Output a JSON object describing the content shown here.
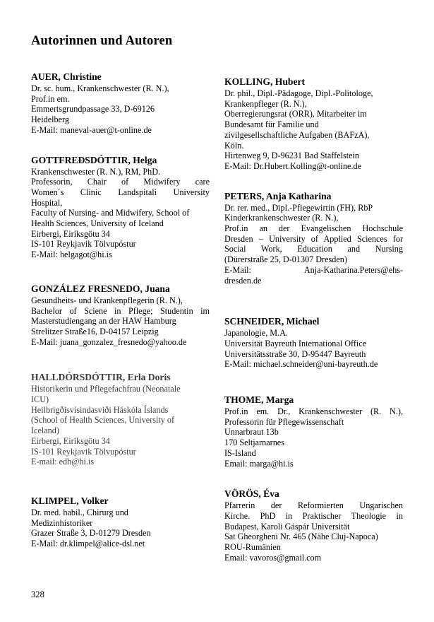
{
  "page": {
    "title": "Autorinnen und Autoren",
    "page_number": "328"
  },
  "authors": {
    "left": [
      {
        "name": "AUER, Christine",
        "lines": [
          {
            "text": "Dr. sc. hum., Krankenschwester (R. N.),"
          },
          {
            "text": "Prof.in em."
          },
          {
            "text": "Emmertsgrundpassage 33, D-69126"
          },
          {
            "text": "Heidelberg"
          },
          {
            "text": "E-Mail: maneval-auer@t-online.de"
          }
        ]
      },
      {
        "name": "GOTTFREÐSDÓTTIR, Helga",
        "lines": [
          {
            "text": "Krankenschwester (R. N.), RM, PhD."
          },
          {
            "text": "Professorin, Chair of Midwifery care",
            "justify": true
          },
          {
            "text": "Women´s Clinic Landspitali University",
            "justify": true
          },
          {
            "text": "Hospital,"
          },
          {
            "text": "Faculty of Nursing- and Midwifery, School of"
          },
          {
            "text": "Health Sciences, University of Iceland"
          },
          {
            "text": "Eirbergi, Eiríksgötu 34"
          },
          {
            "text": "IS-101 Reykjavik Tölvupóstur"
          },
          {
            "text": "E-Mail: helgagot@hi.is"
          }
        ]
      },
      {
        "name": "GONZÁLEZ FRESNEDO, Juana",
        "lines": [
          {
            "text": "Gesundheits- und Krankenpflegerin (R. N.),"
          },
          {
            "text": "Bachelor of Sciene in Pflege; Studentin im",
            "justify": true
          },
          {
            "text": "Masterstudiengang an der HAW Hamburg"
          },
          {
            "text": "Strelitzer Straße16, D-04157 Leipzig"
          },
          {
            "text": "E-Mail: juana_gonzalez_fresnedo@yahoo.de"
          }
        ]
      },
      {
        "name": "HALLDÓRSDÓTTIR, Erla Doris",
        "muted": true,
        "lines": [
          {
            "text": "Historikerin und Pflegefachfrau (Neonatale"
          },
          {
            "text": "ICU)"
          },
          {
            "text": "Heilbrigðisvísindasviði Háskóla Íslands"
          },
          {
            "text": "(School of Health Sciences, University of"
          },
          {
            "text": "Iceland)"
          },
          {
            "text": "Eirbergi, Eiríksgötu 34"
          },
          {
            "text": "IS-101 Reykjavik Tölvupóstur"
          },
          {
            "text": "E-mail: edh@hi.is"
          }
        ]
      },
      {
        "name": "KLIMPEL, Volker",
        "lines": [
          {
            "text": "Dr. med. habil., Chirurg und"
          },
          {
            "text": "Medizinhistoriker"
          },
          {
            "text": "Grazer Straße 3, D-01279 Dresden"
          },
          {
            "text": "E-Mail: dr.klimpel@alice-dsl.net"
          }
        ]
      }
    ],
    "right": [
      {
        "name": "KOLLING, Hubert",
        "lines": [
          {
            "text": "Dr. phil., Dipl.-Pädagoge, Dipl.-Politologe,"
          },
          {
            "text": "Krankenpfleger (R. N.),"
          },
          {
            "text": "Oberregierungsrat (ORR), Mitarbeiter im"
          },
          {
            "text": "Bundesamt für Familie und"
          },
          {
            "text": "zivilgesellschaftliche Aufgaben (BAFzA),"
          },
          {
            "text": "Köln."
          },
          {
            "text": "Hirtenweg 9, D-96231 Bad Staffelstein"
          },
          {
            "text": "E-Mail: Dr.Hubert.Kolling@t-online.de"
          }
        ]
      },
      {
        "name": "PETERS, Anja Katharina",
        "lines": [
          {
            "text": "Dr. rer. med., Dipl.-Pflegewirtin (FH), RbP"
          },
          {
            "text": "Kinderkrankenschwester (R. N.),"
          },
          {
            "text": "Prof.in an der Evangelischen Hochschule",
            "justify": true
          },
          {
            "text": "Dresden – University of Applied Sciences for",
            "justify": true
          },
          {
            "text": "Social Work, Education and Nursing",
            "justify": true
          },
          {
            "text": "(Dürerstraße 25, D-01307 Dresden)"
          },
          {
            "text": "E-Mail: Anja-Katharina.Peters@ehs-",
            "justify": true
          },
          {
            "text": "dresden.de"
          }
        ]
      },
      {
        "name": "SCHNEIDER, Michael",
        "lines": [
          {
            "text": "Japanologie, M.A."
          },
          {
            "text": "Universität Bayreuth International Office"
          },
          {
            "text": "Universitätsstraße 30, D-95447 Bayreuth"
          },
          {
            "text": "E-Mail: michael.schneider@uni-bayreuth.de"
          }
        ]
      },
      {
        "name": "THOME, Marga",
        "lines": [
          {
            "text": "Prof.in em. Dr., Krankenschwester (R. N.),",
            "justify": true
          },
          {
            "text": "Professorin für Pflegewissenschaft"
          },
          {
            "text": "Unnarbraut 13b"
          },
          {
            "text": "170 Seltjarnarnes"
          },
          {
            "text": "IS-Island"
          },
          {
            "text": "Email: marga@hi.is"
          }
        ]
      },
      {
        "name": "VÖRÖS, Éva",
        "lines": [
          {
            "text": "Pfarrerin der Reformierten Ungarischen",
            "justify": true
          },
          {
            "text": "Kirche. PhD in Praktischer Theologie in",
            "justify": true
          },
          {
            "text": "Budapest, Karoli Gáspár Universität"
          },
          {
            "text": "Sat Gheorgheni Nr. 465 (Nähe Cluj-Napoca)"
          },
          {
            "text": "ROU-Rumänien"
          },
          {
            "text": "Email: vavoros@gmail.com"
          }
        ]
      }
    ]
  }
}
